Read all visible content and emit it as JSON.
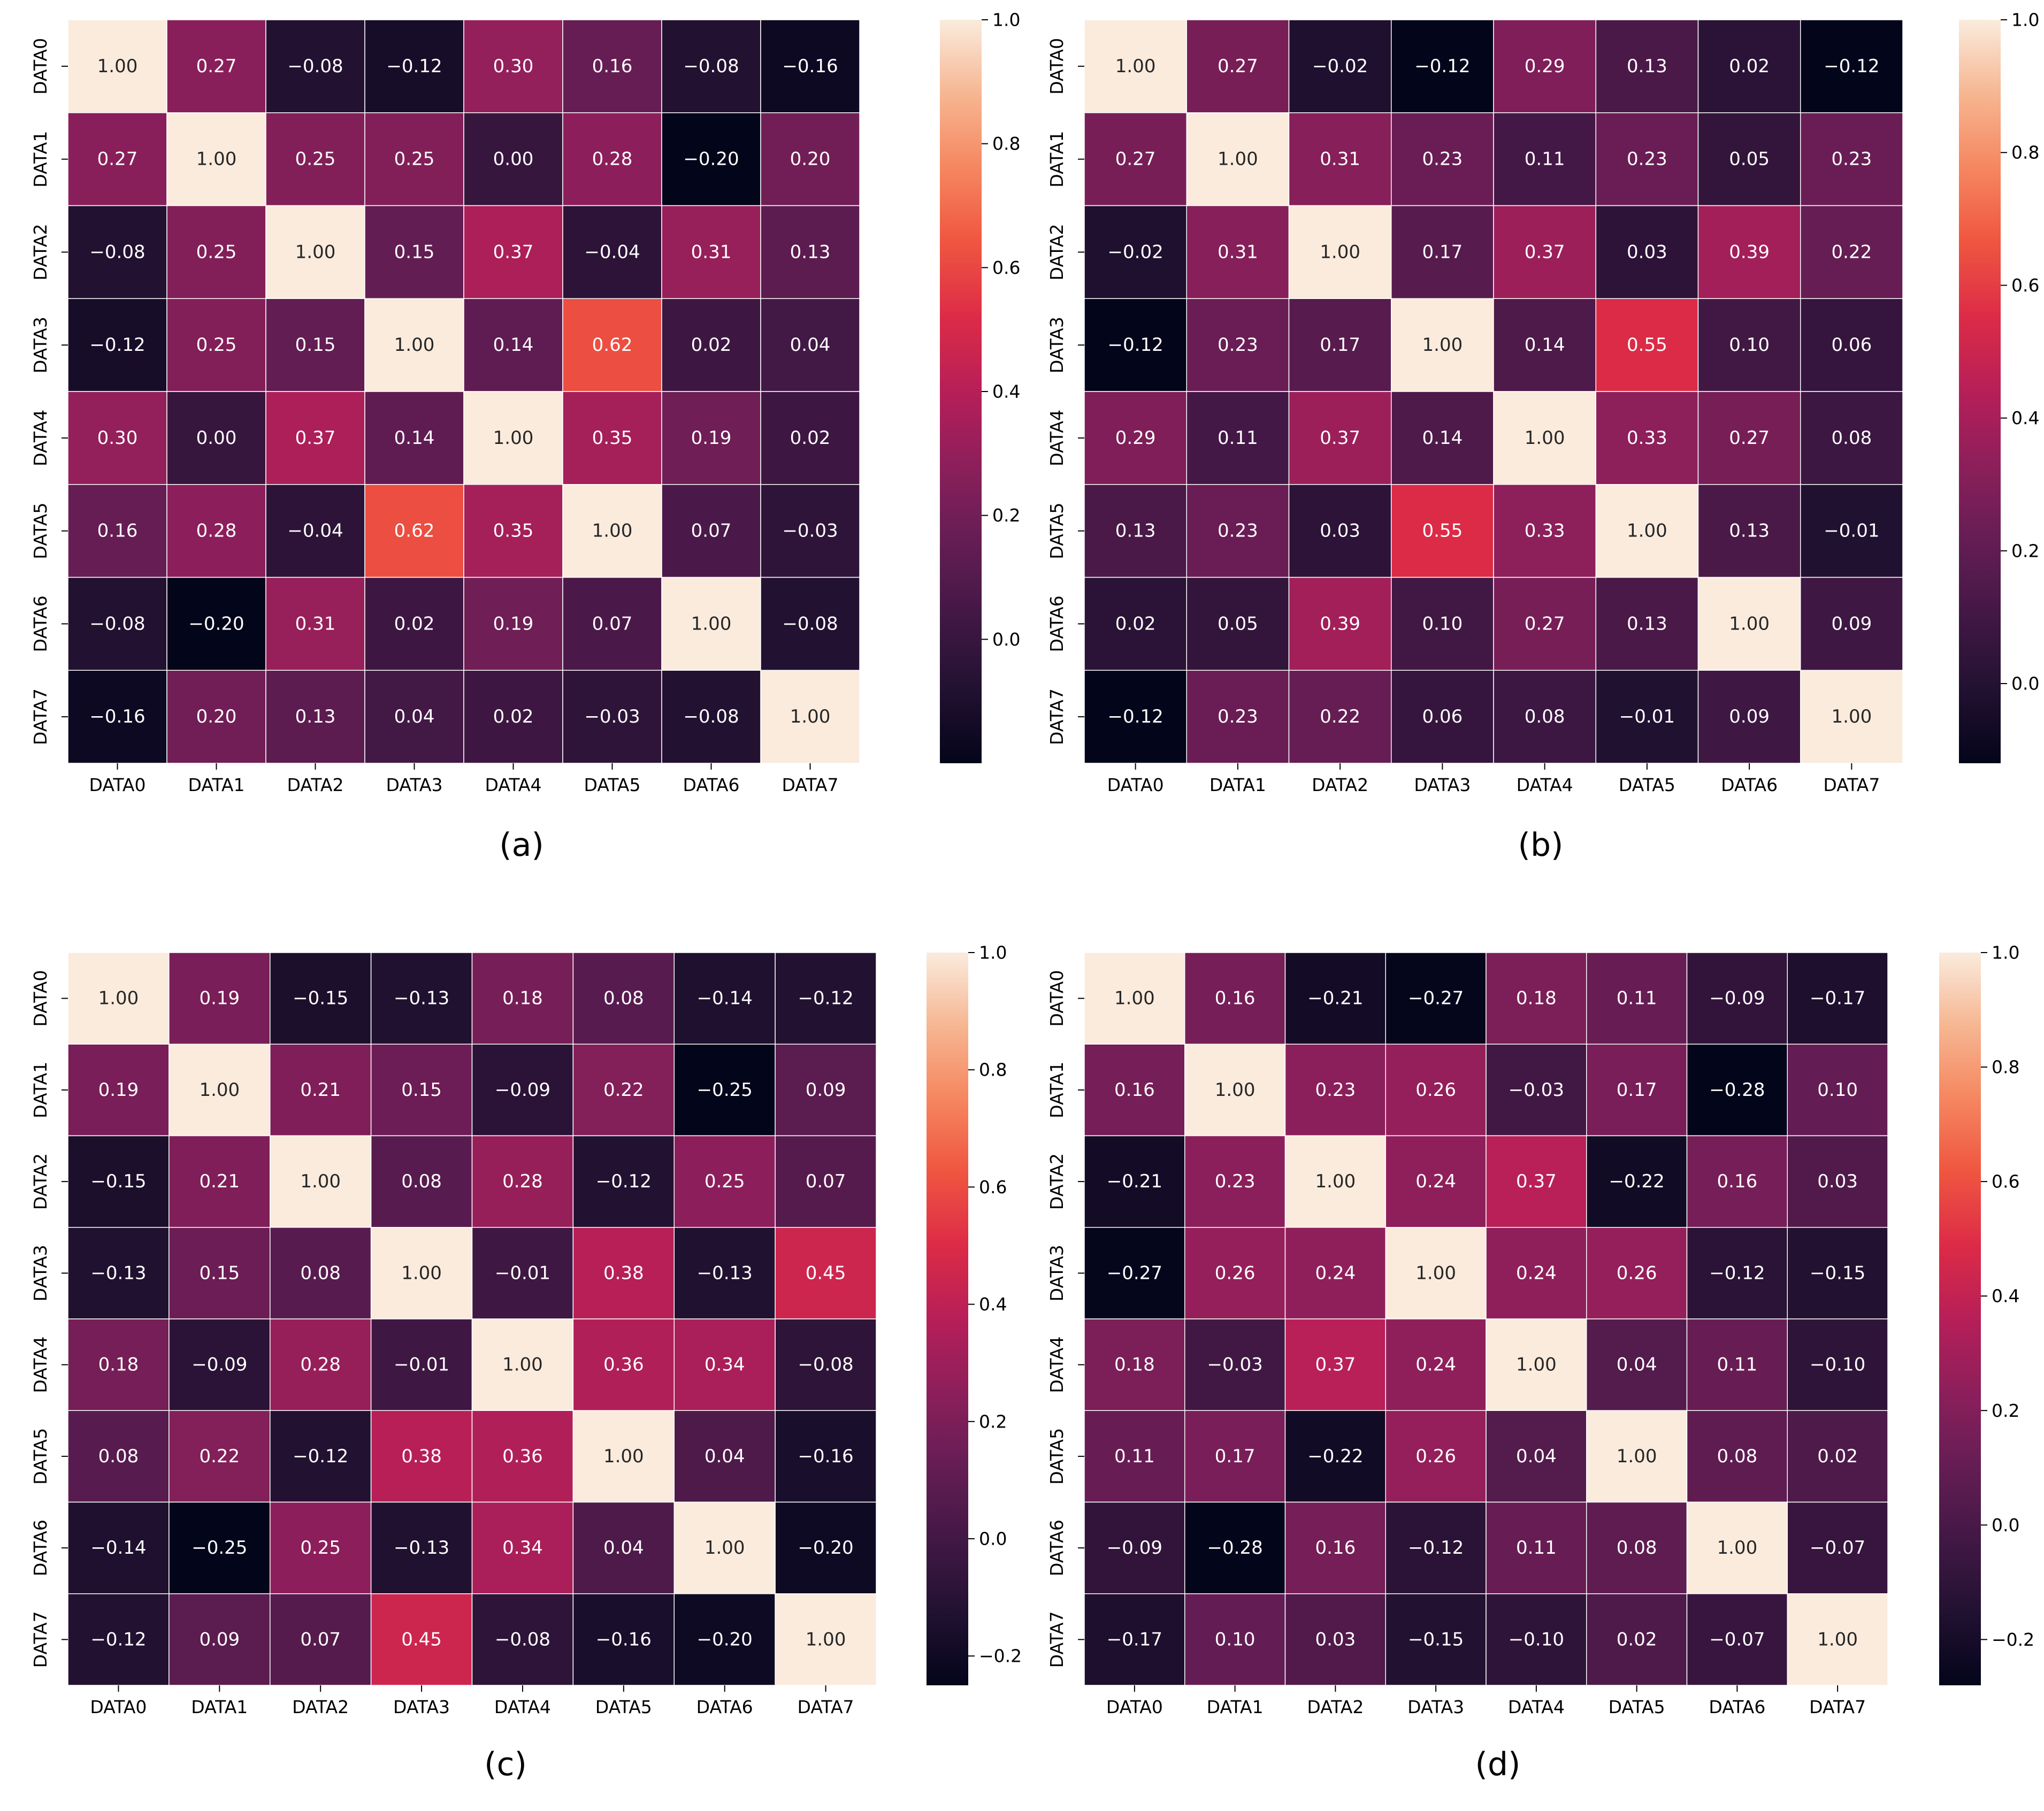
{
  "chart_data": [
    {
      "type": "heatmap",
      "caption": "(a)",
      "row_labels": [
        "DATA0",
        "DATA1",
        "DATA2",
        "DATA3",
        "DATA4",
        "DATA5",
        "DATA6",
        "DATA7"
      ],
      "col_labels": [
        "DATA0",
        "DATA1",
        "DATA2",
        "DATA3",
        "DATA4",
        "DATA5",
        "DATA6",
        "DATA7"
      ],
      "values": [
        [
          1.0,
          0.27,
          -0.08,
          -0.12,
          0.3,
          0.16,
          -0.08,
          -0.16
        ],
        [
          0.27,
          1.0,
          0.25,
          0.25,
          0.0,
          0.28,
          -0.2,
          0.2
        ],
        [
          -0.08,
          0.25,
          1.0,
          0.15,
          0.37,
          -0.04,
          0.31,
          0.13
        ],
        [
          -0.12,
          0.25,
          0.15,
          1.0,
          0.14,
          0.62,
          0.02,
          0.04
        ],
        [
          0.3,
          0.0,
          0.37,
          0.14,
          1.0,
          0.35,
          0.19,
          0.02
        ],
        [
          0.16,
          0.28,
          -0.04,
          0.62,
          0.35,
          1.0,
          0.07,
          -0.03
        ],
        [
          -0.08,
          -0.2,
          0.31,
          0.02,
          0.19,
          0.07,
          1.0,
          -0.08
        ],
        [
          -0.16,
          0.2,
          0.13,
          0.04,
          0.02,
          -0.03,
          -0.08,
          1.0
        ]
      ],
      "colorbar": {
        "range": [
          -0.2,
          1.0
        ],
        "ticks": [
          0.0,
          0.2,
          0.4,
          0.6,
          0.8,
          1.0
        ],
        "colormap": "rocket"
      }
    },
    {
      "type": "heatmap",
      "caption": "(b)",
      "row_labels": [
        "DATA0",
        "DATA1",
        "DATA2",
        "DATA3",
        "DATA4",
        "DATA5",
        "DATA6",
        "DATA7"
      ],
      "col_labels": [
        "DATA0",
        "DATA1",
        "DATA2",
        "DATA3",
        "DATA4",
        "DATA5",
        "DATA6",
        "DATA7"
      ],
      "values": [
        [
          1.0,
          0.27,
          -0.02,
          -0.12,
          0.29,
          0.13,
          0.02,
          -0.12
        ],
        [
          0.27,
          1.0,
          0.31,
          0.23,
          0.11,
          0.23,
          0.05,
          0.23
        ],
        [
          -0.02,
          0.31,
          1.0,
          0.17,
          0.37,
          0.03,
          0.39,
          0.22
        ],
        [
          -0.12,
          0.23,
          0.17,
          1.0,
          0.14,
          0.55,
          0.1,
          0.06
        ],
        [
          0.29,
          0.11,
          0.37,
          0.14,
          1.0,
          0.33,
          0.27,
          0.08
        ],
        [
          0.13,
          0.23,
          0.03,
          0.55,
          0.33,
          1.0,
          0.13,
          -0.01
        ],
        [
          0.02,
          0.05,
          0.39,
          0.1,
          0.27,
          0.13,
          1.0,
          0.09
        ],
        [
          -0.12,
          0.23,
          0.22,
          0.06,
          0.08,
          -0.01,
          0.09,
          1.0
        ]
      ],
      "colorbar": {
        "range": [
          -0.12,
          1.0
        ],
        "ticks": [
          0.0,
          0.2,
          0.4,
          0.6,
          0.8,
          1.0
        ],
        "colormap": "rocket"
      }
    },
    {
      "type": "heatmap",
      "caption": "(c)",
      "row_labels": [
        "DATA0",
        "DATA1",
        "DATA2",
        "DATA3",
        "DATA4",
        "DATA5",
        "DATA6",
        "DATA7"
      ],
      "col_labels": [
        "DATA0",
        "DATA1",
        "DATA2",
        "DATA3",
        "DATA4",
        "DATA5",
        "DATA6",
        "DATA7"
      ],
      "values": [
        [
          1.0,
          0.19,
          -0.15,
          -0.13,
          0.18,
          0.08,
          -0.14,
          -0.12
        ],
        [
          0.19,
          1.0,
          0.21,
          0.15,
          -0.09,
          0.22,
          -0.25,
          0.09
        ],
        [
          -0.15,
          0.21,
          1.0,
          0.08,
          0.28,
          -0.12,
          0.25,
          0.07
        ],
        [
          -0.13,
          0.15,
          0.08,
          1.0,
          -0.01,
          0.38,
          -0.13,
          0.45
        ],
        [
          0.18,
          -0.09,
          0.28,
          -0.01,
          1.0,
          0.36,
          0.34,
          -0.08
        ],
        [
          0.08,
          0.22,
          -0.12,
          0.38,
          0.36,
          1.0,
          0.04,
          -0.16
        ],
        [
          -0.14,
          -0.25,
          0.25,
          -0.13,
          0.34,
          0.04,
          1.0,
          -0.2
        ],
        [
          -0.12,
          0.09,
          0.07,
          0.45,
          -0.08,
          -0.16,
          -0.2,
          1.0
        ]
      ],
      "colorbar": {
        "range": [
          -0.25,
          1.0
        ],
        "ticks": [
          -0.2,
          0.0,
          0.2,
          0.4,
          0.6,
          0.8,
          1.0
        ],
        "colormap": "rocket"
      }
    },
    {
      "type": "heatmap",
      "caption": "(d)",
      "row_labels": [
        "DATA0",
        "DATA1",
        "DATA2",
        "DATA3",
        "DATA4",
        "DATA5",
        "DATA6",
        "DATA7"
      ],
      "col_labels": [
        "DATA0",
        "DATA1",
        "DATA2",
        "DATA3",
        "DATA4",
        "DATA5",
        "DATA6",
        "DATA7"
      ],
      "values": [
        [
          1.0,
          0.16,
          -0.21,
          -0.27,
          0.18,
          0.11,
          -0.09,
          -0.17
        ],
        [
          0.16,
          1.0,
          0.23,
          0.26,
          -0.03,
          0.17,
          -0.28,
          0.1
        ],
        [
          -0.21,
          0.23,
          1.0,
          0.24,
          0.37,
          -0.22,
          0.16,
          0.03
        ],
        [
          -0.27,
          0.26,
          0.24,
          1.0,
          0.24,
          0.26,
          -0.12,
          -0.15
        ],
        [
          0.18,
          -0.03,
          0.37,
          0.24,
          1.0,
          0.04,
          0.11,
          -0.1
        ],
        [
          0.11,
          0.17,
          -0.22,
          0.26,
          0.04,
          1.0,
          0.08,
          0.02
        ],
        [
          -0.09,
          -0.28,
          0.16,
          -0.12,
          0.11,
          0.08,
          1.0,
          -0.07
        ],
        [
          -0.17,
          0.1,
          0.03,
          -0.15,
          -0.1,
          0.02,
          -0.07,
          1.0
        ]
      ],
      "colorbar": {
        "range": [
          -0.28,
          1.0
        ],
        "ticks": [
          -0.2,
          0.0,
          0.2,
          0.4,
          0.6,
          0.8,
          1.0
        ],
        "colormap": "rocket"
      }
    }
  ]
}
